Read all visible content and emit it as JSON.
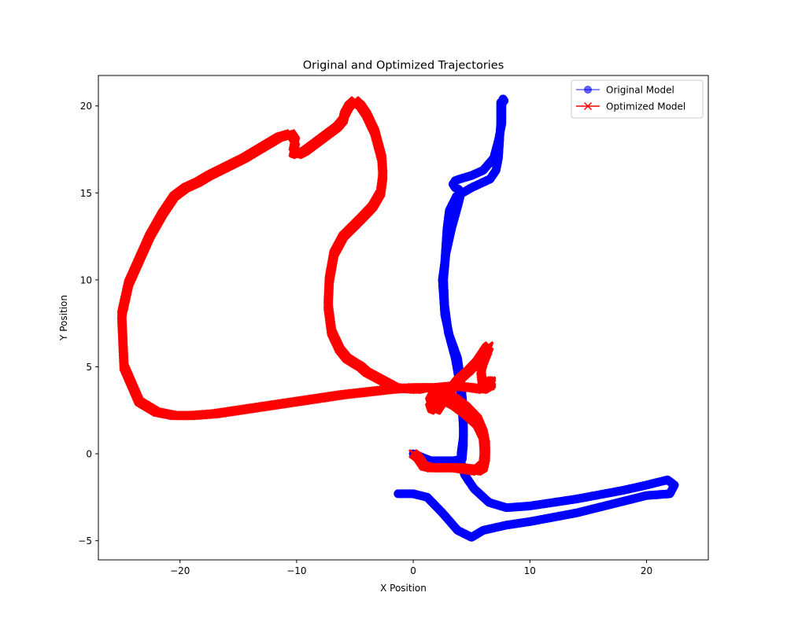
{
  "chart_data": {
    "type": "line",
    "title": "Original and Optimized Trajectories",
    "xlabel": "X Position",
    "ylabel": "Y Position",
    "xlim": [
      -27,
      25.3
    ],
    "ylim": [
      -6.1,
      21.75
    ],
    "xticks": [
      -20,
      -10,
      0,
      10,
      20
    ],
    "yticks": [
      -5,
      0,
      5,
      10,
      15,
      20
    ],
    "grid": false,
    "legend_position": "top-right",
    "series": [
      {
        "name": "Original Model",
        "color": "#0000ff",
        "marker": "circle",
        "x": [
          0,
          1.5,
          3.5,
          4.2,
          4.3,
          4.3,
          4.2,
          4.0,
          3.6,
          3.0,
          2.7,
          2.6,
          2.8,
          3.3,
          3.8,
          4.1,
          3.9,
          3.6,
          3.4,
          3.6,
          4.0,
          5.0,
          6.0,
          6.9,
          7.3,
          7.6,
          7.6,
          7.7,
          7.8,
          7.5,
          7.5,
          7.5,
          7.4,
          7.3,
          7.1,
          6.6,
          5.0,
          3.7,
          3.1,
          2.9,
          2.8,
          2.7,
          2.5,
          2.6,
          2.7,
          3.1,
          3.8,
          4.1,
          4.3,
          4.3,
          4.1,
          4.1,
          4.4,
          5.2,
          6.5,
          8.0,
          10.0,
          14.0,
          18.0,
          20.0,
          21.8,
          22.4,
          22.0,
          20.0,
          14.0,
          10.0,
          8.0,
          6.0,
          5.0,
          3.8,
          2.5,
          1.2,
          0,
          -1.3
        ],
        "y": [
          0,
          -0.4,
          -0.4,
          -0.3,
          0.5,
          1.5,
          2.5,
          4.0,
          5.5,
          7.0,
          8.5,
          10.0,
          11.5,
          13.0,
          14.2,
          15.0,
          15.2,
          15.3,
          15.5,
          15.7,
          15.8,
          16.0,
          16.3,
          17.0,
          18.0,
          19.0,
          20.0,
          20.4,
          20.3,
          20.2,
          19.6,
          19.0,
          18.0,
          17.0,
          16.3,
          15.8,
          15.3,
          14.8,
          14.0,
          13.0,
          12.0,
          11.0,
          10.0,
          9.0,
          8.0,
          6.8,
          5.5,
          4.0,
          2.5,
          1.0,
          0,
          -0.5,
          -1.2,
          -2.0,
          -2.8,
          -3.1,
          -3.0,
          -2.6,
          -2.1,
          -1.8,
          -1.5,
          -1.8,
          -2.3,
          -2.4,
          -3.4,
          -3.9,
          -4.1,
          -4.4,
          -4.8,
          -4.4,
          -3.4,
          -2.5,
          -2.3,
          -2.3
        ]
      },
      {
        "name": "Optimized Model",
        "color": "#ff0000",
        "marker": "x",
        "x": [
          0,
          0.4,
          0.9,
          1.5,
          2.8,
          4.0,
          5.5,
          6.0,
          6.1,
          6.0,
          5.5,
          4.5,
          3.5,
          2.4,
          1.7,
          1.4,
          1.6,
          2.0,
          2.5,
          3.0,
          3.8,
          4.8,
          5.5,
          6.0,
          6.3,
          6.5,
          6.3,
          6.0,
          5.8,
          5.9,
          6.1,
          6.2,
          6.3,
          6.5,
          6.5,
          6.6,
          6.7,
          6.7,
          6.5,
          6.0,
          5.0,
          3.5,
          2.0,
          1.0,
          0.3,
          -1.5,
          -4.0,
          -4.5,
          -5.0,
          -5.7,
          -6.3,
          -7.0,
          -7.3,
          -7.2,
          -6.8,
          -6.0,
          -4.5,
          -3.5,
          -2.8,
          -2.6,
          -2.7,
          -3.3,
          -4.0,
          -4.5,
          -5.0,
          -5.5,
          -5.9,
          -6.0,
          -6.5,
          -7.5,
          -8.5,
          -9.3,
          -9.9,
          -10.3,
          -10.1,
          -10.5,
          -11.5,
          -13.0,
          -14.5,
          -16.0,
          -17.5,
          -18.5,
          -19.5,
          -20.5,
          -21.5,
          -22.6,
          -23.6,
          -24.4,
          -25.0,
          -24.8,
          -23.5,
          -22.0,
          -20.5,
          -19.0,
          -17.0,
          -14.0,
          -10.0,
          -6.0,
          -2.0,
          0,
          1.5,
          2.5,
          3.5,
          4.5,
          5.5,
          6.0,
          6.2,
          6.2,
          6.0,
          5.5,
          4.5,
          3.5,
          2.5,
          1.5
        ],
        "y": [
          0,
          -0.2,
          -0.7,
          -0.8,
          -0.8,
          -0.8,
          -0.9,
          -0.6,
          0,
          1.0,
          1.7,
          2.3,
          2.8,
          3.2,
          3.4,
          3.0,
          2.6,
          2.5,
          3.0,
          3.5,
          4.2,
          4.8,
          5.3,
          5.8,
          6.1,
          6.2,
          5.8,
          5.3,
          4.8,
          4.2,
          3.9,
          3.8,
          4.2,
          4.2,
          4.0,
          3.9,
          4.2,
          4.0,
          3.9,
          3.7,
          3.8,
          3.9,
          3.8,
          3.8,
          3.7,
          3.8,
          4.7,
          5.0,
          5.2,
          5.5,
          6.0,
          7.0,
          8.5,
          10.0,
          11.5,
          12.5,
          13.5,
          14.2,
          15.0,
          16.0,
          17.0,
          18.5,
          19.5,
          20.0,
          20.3,
          20.0,
          19.5,
          19.2,
          18.8,
          18.3,
          17.8,
          17.4,
          17.2,
          17.3,
          18.0,
          18.4,
          18.2,
          17.6,
          17.0,
          16.5,
          16.0,
          15.6,
          15.3,
          14.8,
          13.8,
          12.5,
          11.0,
          9.8,
          8.0,
          5.0,
          3.0,
          2.4,
          2.2,
          2.2,
          2.3,
          2.6,
          3.0,
          3.4,
          3.7,
          3.8,
          3.8,
          3.6,
          3.2,
          2.7,
          2.0,
          1.2,
          0.5,
          -0.2,
          -0.8,
          -1.0,
          -0.9,
          -0.8,
          -0.8,
          -0.8
        ]
      }
    ]
  }
}
